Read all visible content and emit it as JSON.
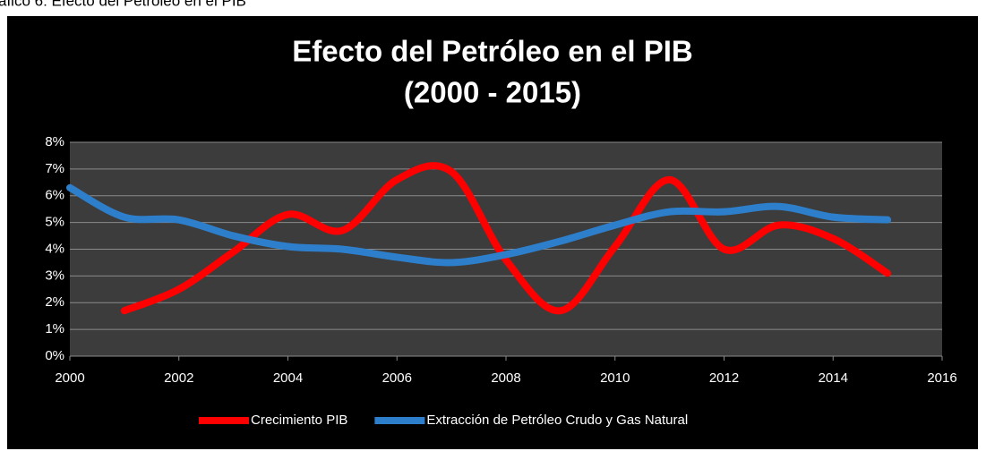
{
  "caption": "áfico 6: Efecto del Petróleo en el PIB",
  "chart_data": {
    "type": "line",
    "title": "Efecto del Petróleo en el PIB",
    "subtitle": "(2000 - 2015)",
    "x": [
      2000,
      2001,
      2002,
      2003,
      2004,
      2005,
      2006,
      2007,
      2008,
      2009,
      2010,
      2011,
      2012,
      2013,
      2014,
      2015
    ],
    "series": [
      {
        "name": "Crecimiento PIB",
        "color": "#ff0000",
        "values": [
          null,
          1.7,
          2.5,
          3.9,
          5.3,
          4.7,
          6.6,
          6.9,
          3.6,
          1.7,
          4.1,
          6.6,
          4.0,
          4.9,
          4.4,
          3.1
        ]
      },
      {
        "name": "Extracción de Petróleo Crudo y Gas Natural",
        "color": "#2e7fcb",
        "values": [
          6.3,
          5.2,
          5.1,
          4.5,
          4.1,
          4.0,
          3.7,
          3.5,
          3.8,
          4.3,
          4.9,
          5.4,
          5.4,
          5.6,
          5.2,
          5.1
        ]
      }
    ],
    "xlim": [
      2000,
      2016
    ],
    "xticks": [
      2000,
      2002,
      2004,
      2006,
      2008,
      2010,
      2012,
      2014,
      2016
    ],
    "ylim": [
      0,
      8
    ],
    "yticks": [
      {
        "value": 0,
        "label": "0%"
      },
      {
        "value": 1,
        "label": "1%"
      },
      {
        "value": 2,
        "label": "2%"
      },
      {
        "value": 3,
        "label": "3%"
      },
      {
        "value": 4,
        "label": "4%"
      },
      {
        "value": 5,
        "label": "5%"
      },
      {
        "value": 6,
        "label": "6%"
      },
      {
        "value": 7,
        "label": "7%"
      },
      {
        "value": 8,
        "label": "8%"
      }
    ],
    "grid": true,
    "legend": "bottom"
  }
}
